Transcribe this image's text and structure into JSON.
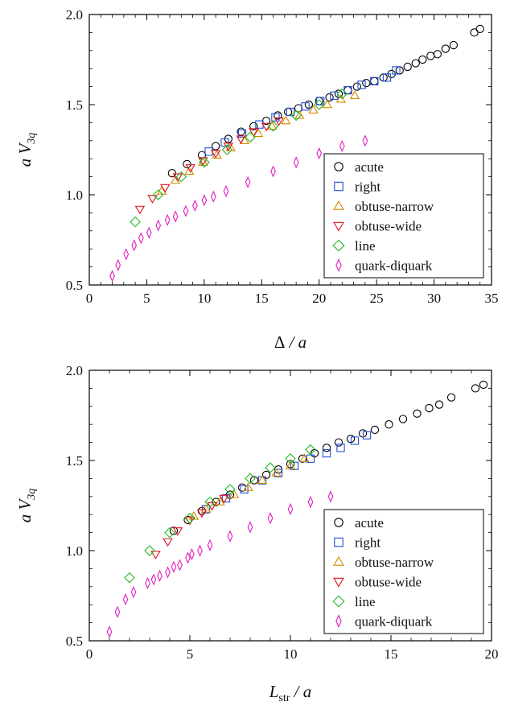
{
  "chart_data": [
    {
      "type": "scatter",
      "xlabel": "Δ / a",
      "ylabel": "a V3q",
      "xlim": [
        0,
        35
      ],
      "ylim": [
        0.5,
        2.0
      ],
      "xticks": [
        "0",
        "5",
        "10",
        "15",
        "20",
        "25",
        "30",
        "35"
      ],
      "yticks": [
        "0.5",
        "1.0",
        "1.5",
        "2.0"
      ],
      "grid": false,
      "legend_position": "bottom-right",
      "series": [
        {
          "name": "acute",
          "marker": "circle",
          "color": "#000000",
          "x": [
            7.2,
            8.5,
            9.8,
            11.0,
            12.1,
            13.2,
            14.3,
            15.4,
            16.4,
            17.3,
            18.2,
            19.1,
            20.0,
            20.9,
            21.7,
            22.5,
            23.3,
            24.1,
            24.8,
            25.6,
            26.3,
            27.0,
            27.7,
            28.4,
            29.0,
            29.7,
            30.3,
            31.0,
            31.7,
            33.5,
            34.0
          ],
          "y": [
            1.12,
            1.17,
            1.22,
            1.27,
            1.31,
            1.35,
            1.38,
            1.41,
            1.44,
            1.46,
            1.48,
            1.5,
            1.52,
            1.54,
            1.56,
            1.58,
            1.6,
            1.62,
            1.63,
            1.65,
            1.67,
            1.69,
            1.71,
            1.73,
            1.75,
            1.77,
            1.78,
            1.81,
            1.83,
            1.9,
            1.92
          ]
        },
        {
          "name": "right",
          "marker": "square",
          "color": "#1f4fd6",
          "x": [
            10.4,
            11.8,
            13.3,
            14.8,
            16.2,
            17.5,
            18.8,
            20.1,
            21.3,
            22.5,
            23.7,
            24.8,
            25.9,
            26.7
          ],
          "y": [
            1.24,
            1.29,
            1.34,
            1.39,
            1.43,
            1.46,
            1.49,
            1.52,
            1.55,
            1.58,
            1.61,
            1.63,
            1.65,
            1.69
          ]
        },
        {
          "name": "obtuse-narrow",
          "marker": "triangle-up",
          "color": "#d68a00",
          "x": [
            6.3,
            7.5,
            8.7,
            9.9,
            11.1,
            12.3,
            13.5,
            14.7,
            15.9,
            17.1,
            18.3,
            19.5,
            20.7,
            21.9,
            23.1
          ],
          "y": [
            1.02,
            1.08,
            1.13,
            1.18,
            1.22,
            1.26,
            1.3,
            1.34,
            1.38,
            1.41,
            1.44,
            1.47,
            1.5,
            1.53,
            1.55
          ]
        },
        {
          "name": "obtuse-wide",
          "marker": "triangle-down",
          "color": "#e0101c",
          "x": [
            4.4,
            5.5,
            6.6,
            7.7,
            8.8,
            9.9,
            11.0,
            12.1,
            13.2,
            14.3,
            15.4,
            16.5
          ],
          "y": [
            0.92,
            0.98,
            1.04,
            1.1,
            1.15,
            1.19,
            1.23,
            1.27,
            1.31,
            1.35,
            1.38,
            1.41
          ]
        },
        {
          "name": "line",
          "marker": "diamond",
          "color": "#22b822",
          "x": [
            4.0,
            6.0,
            8.0,
            10.0,
            12.0,
            14.0,
            16.0,
            18.0,
            20.0,
            22.0
          ],
          "y": [
            0.85,
            1.0,
            1.1,
            1.18,
            1.25,
            1.32,
            1.38,
            1.44,
            1.5,
            1.56
          ]
        },
        {
          "name": "quark-diquark",
          "marker": "thin-diamond",
          "color": "#e020c0",
          "x": [
            2.0,
            2.5,
            3.2,
            3.9,
            4.5,
            5.2,
            6.0,
            6.8,
            7.5,
            8.4,
            9.2,
            10.0,
            10.8,
            11.9,
            13.8,
            16.0,
            18.0,
            20.0,
            22.0,
            24.0
          ],
          "y": [
            0.55,
            0.61,
            0.67,
            0.72,
            0.76,
            0.79,
            0.83,
            0.86,
            0.88,
            0.91,
            0.94,
            0.97,
            0.99,
            1.02,
            1.07,
            1.13,
            1.18,
            1.23,
            1.27,
            1.3
          ]
        }
      ]
    },
    {
      "type": "scatter",
      "xlabel": "Lstr / a",
      "ylabel": "a V3q",
      "xlim": [
        0,
        20
      ],
      "ylim": [
        0.5,
        2.0
      ],
      "xticks": [
        "0",
        "5",
        "10",
        "15",
        "20"
      ],
      "yticks": [
        "0.5",
        "1.0",
        "1.5",
        "2.0"
      ],
      "grid": false,
      "legend_position": "bottom-right",
      "series": [
        {
          "name": "acute",
          "marker": "circle",
          "color": "#000000",
          "x": [
            4.2,
            4.9,
            5.6,
            6.3,
            7.0,
            7.6,
            8.2,
            8.8,
            9.4,
            10.0,
            10.6,
            11.2,
            11.8,
            12.4,
            13.0,
            13.6,
            14.2,
            14.9,
            15.6,
            16.3,
            16.9,
            17.4,
            18.0,
            19.2,
            19.6
          ],
          "y": [
            1.11,
            1.17,
            1.22,
            1.27,
            1.31,
            1.35,
            1.39,
            1.42,
            1.45,
            1.48,
            1.51,
            1.54,
            1.57,
            1.6,
            1.62,
            1.65,
            1.67,
            1.7,
            1.73,
            1.76,
            1.79,
            1.81,
            1.85,
            1.9,
            1.92
          ]
        },
        {
          "name": "right",
          "marker": "square",
          "color": "#1f4fd6",
          "x": [
            5.8,
            6.8,
            7.7,
            8.6,
            9.4,
            10.2,
            11.0,
            11.8,
            12.5,
            13.2,
            13.8
          ],
          "y": [
            1.23,
            1.29,
            1.34,
            1.39,
            1.43,
            1.47,
            1.51,
            1.54,
            1.57,
            1.61,
            1.64
          ]
        },
        {
          "name": "obtuse-narrow",
          "marker": "triangle-up",
          "color": "#d68a00",
          "x": [
            5.2,
            5.8,
            6.5,
            7.2,
            7.9,
            8.6,
            9.3,
            10.0,
            10.7
          ],
          "y": [
            1.19,
            1.23,
            1.27,
            1.31,
            1.35,
            1.39,
            1.43,
            1.47,
            1.51
          ]
        },
        {
          "name": "obtuse-wide",
          "marker": "triangle-down",
          "color": "#e0101c",
          "x": [
            3.3,
            3.9,
            4.4,
            5.0,
            5.6,
            6.1,
            6.7
          ],
          "y": [
            0.98,
            1.05,
            1.11,
            1.17,
            1.21,
            1.25,
            1.29
          ]
        },
        {
          "name": "line",
          "marker": "diamond",
          "color": "#22b822",
          "x": [
            2.0,
            3.0,
            4.0,
            5.0,
            6.0,
            7.0,
            8.0,
            9.0,
            10.0,
            11.0
          ],
          "y": [
            0.85,
            1.0,
            1.1,
            1.18,
            1.27,
            1.34,
            1.4,
            1.46,
            1.51,
            1.56
          ]
        },
        {
          "name": "quark-diquark",
          "marker": "thin-diamond",
          "color": "#e020c0",
          "x": [
            1.0,
            1.4,
            1.8,
            2.2,
            2.9,
            3.2,
            3.5,
            3.9,
            4.2,
            4.5,
            4.9,
            5.1,
            5.5,
            6.0,
            7.0,
            8.0,
            9.0,
            10.0,
            11.0,
            12.0
          ],
          "y": [
            0.55,
            0.66,
            0.73,
            0.77,
            0.82,
            0.84,
            0.86,
            0.88,
            0.91,
            0.92,
            0.96,
            0.98,
            1.0,
            1.03,
            1.08,
            1.13,
            1.18,
            1.23,
            1.27,
            1.3
          ]
        }
      ]
    }
  ]
}
